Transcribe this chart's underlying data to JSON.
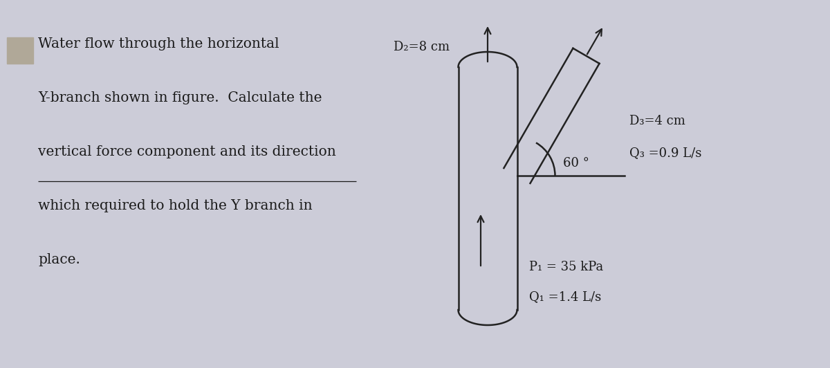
{
  "bg_color": "#ccccd8",
  "text_color": "#1a1a1a",
  "problem_text_lines": [
    "Water flow through the horizontal",
    "Y-branch shown in figure.  Calculate the",
    "vertical force component and its direction",
    "which required to hold the Y branch in",
    "place."
  ],
  "label_D2": "D₂=8 cm",
  "label_D3": "D₃=4 cm",
  "label_Q3": "Q₃ =0.9 L/s",
  "label_angle": "60 °",
  "label_P1": "P₁ = 35 kPa",
  "label_Q1": "Q₁ =1.4 L/s",
  "pipe_color": "#222222",
  "pipe_lw": 1.8,
  "arrow_color": "#222222",
  "fig_width": 12.0,
  "fig_height": 5.32,
  "dpi": 100
}
